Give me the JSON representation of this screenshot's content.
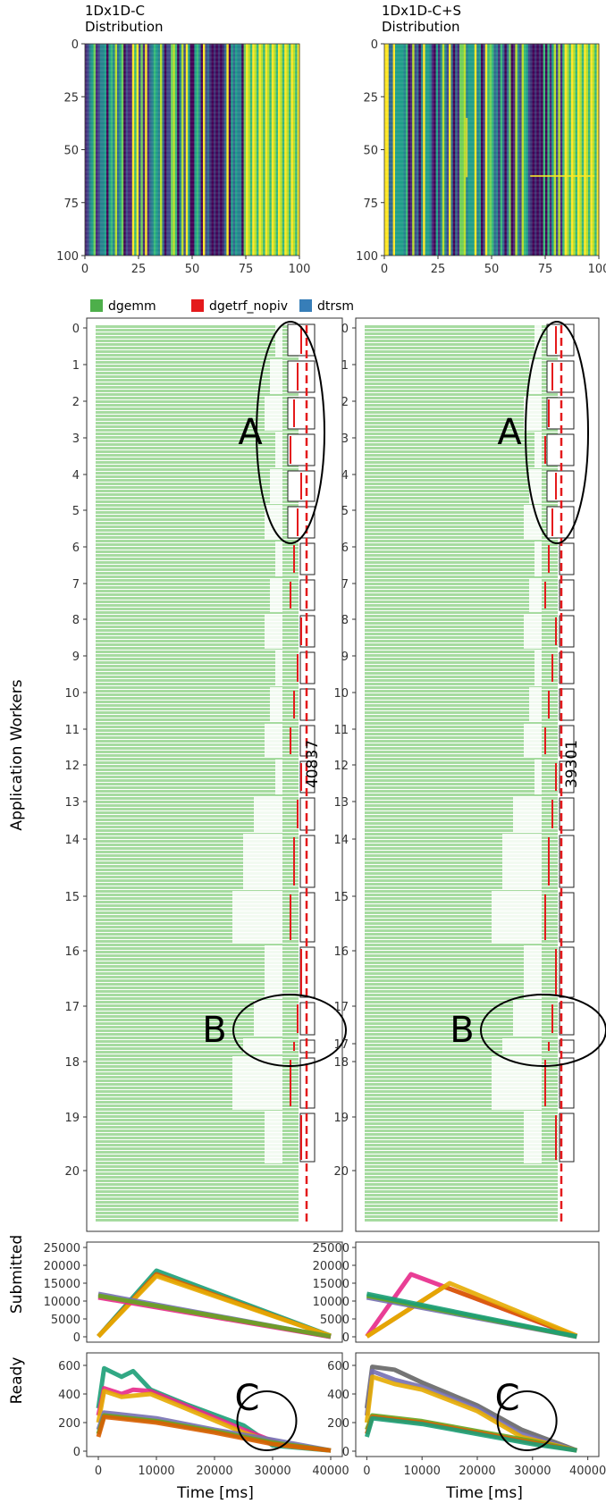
{
  "chart_data": [
    {
      "type": "heatmap",
      "title": [
        "1Dx1D-C",
        "Distribution"
      ],
      "x_ticks": [
        0,
        25,
        50,
        75,
        100
      ],
      "y_ticks": [
        0,
        25,
        50,
        75,
        100
      ],
      "xlim": [
        0,
        100
      ],
      "ylim": [
        100,
        0
      ]
    },
    {
      "type": "heatmap",
      "title": [
        "1Dx1D-C+S",
        "Distribution"
      ],
      "x_ticks": [
        0,
        25,
        50,
        75,
        100
      ],
      "y_ticks": [
        0,
        25,
        50,
        75,
        100
      ],
      "tick_labels_x": [
        "0",
        "25",
        "50",
        "75",
        "100"
      ],
      "xlim": [
        0,
        100
      ],
      "ylim": [
        100,
        0
      ]
    },
    {
      "type": "gantt",
      "ylabel": "Application Workers",
      "legend": [
        {
          "name": "dgemm",
          "color": "#4daf4a"
        },
        {
          "name": "dgetrf_nopiv",
          "color": "#e41a1c"
        },
        {
          "name": "dtrsm",
          "color": "#377eb8"
        }
      ],
      "worker_ticks": [
        "0",
        "1",
        "2",
        "3",
        "4",
        "5",
        "6",
        "7",
        "8",
        "9",
        "10",
        "11",
        "12",
        "13",
        "14",
        "15",
        "16",
        "17",
        "17",
        "18",
        "19",
        "20"
      ],
      "panels": [
        {
          "makespan_label": "40837",
          "annotations": [
            "A",
            "B"
          ]
        },
        {
          "makespan_label": "39301",
          "annotations": [
            "A",
            "B"
          ]
        }
      ]
    },
    {
      "type": "line",
      "ylabel": "Submitted",
      "y_ticks": [
        0,
        5000,
        10000,
        15000,
        20000,
        25000
      ],
      "ylim": [
        0,
        25000
      ],
      "panels": [
        {
          "series": [
            {
              "color": "#1b9e77",
              "x": [
                0,
                10000,
                40000
              ],
              "y": [
                100,
                18500,
                300
              ]
            },
            {
              "color": "#d95f02",
              "x": [
                0,
                10000,
                40000
              ],
              "y": [
                100,
                17500,
                200
              ]
            },
            {
              "color": "#e6ab02",
              "x": [
                0,
                10000,
                40000
              ],
              "y": [
                100,
                17000,
                250
              ]
            },
            {
              "color": "#7570b3",
              "x": [
                0,
                40000
              ],
              "y": [
                12000,
                0
              ]
            },
            {
              "color": "#e7298a",
              "x": [
                0,
                40000
              ],
              "y": [
                11000,
                0
              ]
            },
            {
              "color": "#66a61e",
              "x": [
                0,
                40000
              ],
              "y": [
                11500,
                100
              ]
            }
          ]
        },
        {
          "series": [
            {
              "color": "#e7298a",
              "x": [
                0,
                8000,
                38000
              ],
              "y": [
                100,
                17500,
                100
              ]
            },
            {
              "color": "#d95f02",
              "x": [
                0,
                14000,
                38000
              ],
              "y": [
                100,
                14000,
                200
              ]
            },
            {
              "color": "#e6ab02",
              "x": [
                0,
                15000,
                38000
              ],
              "y": [
                100,
                15000,
                300
              ]
            },
            {
              "color": "#7570b3",
              "x": [
                0,
                38000
              ],
              "y": [
                11000,
                0
              ]
            },
            {
              "color": "#66a61e",
              "x": [
                0,
                38000
              ],
              "y": [
                11500,
                50
              ]
            },
            {
              "color": "#1b9e77",
              "x": [
                0,
                38000
              ],
              "y": [
                12000,
                100
              ]
            }
          ]
        }
      ]
    },
    {
      "type": "line",
      "ylabel": "Ready",
      "xlabel": "Time [ms]",
      "x_ticks": [
        0,
        10000,
        20000,
        30000,
        40000
      ],
      "y_ticks": [
        0,
        200,
        400,
        600
      ],
      "ylim": [
        0,
        650
      ],
      "xlim": [
        -2000,
        42000
      ],
      "annotations": [
        "C"
      ],
      "panels": [
        {
          "series": [
            {
              "color": "#1b9e77",
              "x": [
                0,
                1000,
                4000,
                6000,
                9000,
                15000,
                25000,
                30000,
                40000
              ],
              "y": [
                300,
                580,
                520,
                560,
                430,
                330,
                180,
                40,
                5
              ]
            },
            {
              "color": "#e7298a",
              "x": [
                0,
                1000,
                4000,
                6000,
                9000,
                15000,
                25000,
                32000,
                40000
              ],
              "y": [
                250,
                440,
                400,
                430,
                420,
                320,
                150,
                40,
                5
              ]
            },
            {
              "color": "#e6ab02",
              "x": [
                0,
                1000,
                4000,
                9000,
                15000,
                25000,
                32000,
                40000
              ],
              "y": [
                200,
                420,
                380,
                400,
                300,
                130,
                40,
                5
              ]
            },
            {
              "color": "#7570b3",
              "x": [
                0,
                1000,
                10000,
                20000,
                30000,
                40000
              ],
              "y": [
                150,
                270,
                230,
                150,
                80,
                5
              ]
            },
            {
              "color": "#66a61e",
              "x": [
                0,
                1000,
                10000,
                20000,
                30000,
                40000
              ],
              "y": [
                120,
                250,
                210,
                140,
                60,
                5
              ]
            },
            {
              "color": "#d95f02",
              "x": [
                0,
                1000,
                10000,
                20000,
                30000,
                40000
              ],
              "y": [
                100,
                240,
                200,
                130,
                50,
                5
              ]
            }
          ]
        },
        {
          "series": [
            {
              "color": "#666666",
              "x": [
                0,
                1000,
                5000,
                10000,
                20000,
                28000,
                38000
              ],
              "y": [
                300,
                590,
                570,
                480,
                320,
                150,
                5
              ]
            },
            {
              "color": "#7570b3",
              "x": [
                0,
                1000,
                5000,
                10000,
                20000,
                28000,
                38000
              ],
              "y": [
                250,
                560,
                500,
                450,
                300,
                120,
                5
              ]
            },
            {
              "color": "#e6ab02",
              "x": [
                0,
                1000,
                5000,
                10000,
                20000,
                28000,
                38000
              ],
              "y": [
                200,
                520,
                470,
                430,
                280,
                100,
                5
              ]
            },
            {
              "color": "#66a61e",
              "x": [
                0,
                1000,
                10000,
                20000,
                30000,
                38000
              ],
              "y": [
                150,
                250,
                210,
                140,
                70,
                5
              ]
            },
            {
              "color": "#d95f02",
              "x": [
                0,
                1000,
                10000,
                20000,
                30000,
                38000
              ],
              "y": [
                120,
                240,
                200,
                130,
                60,
                5
              ]
            },
            {
              "color": "#1b9e77",
              "x": [
                0,
                1000,
                10000,
                20000,
                30000,
                38000
              ],
              "y": [
                100,
                230,
                190,
                120,
                50,
                5
              ]
            }
          ]
        }
      ]
    }
  ]
}
